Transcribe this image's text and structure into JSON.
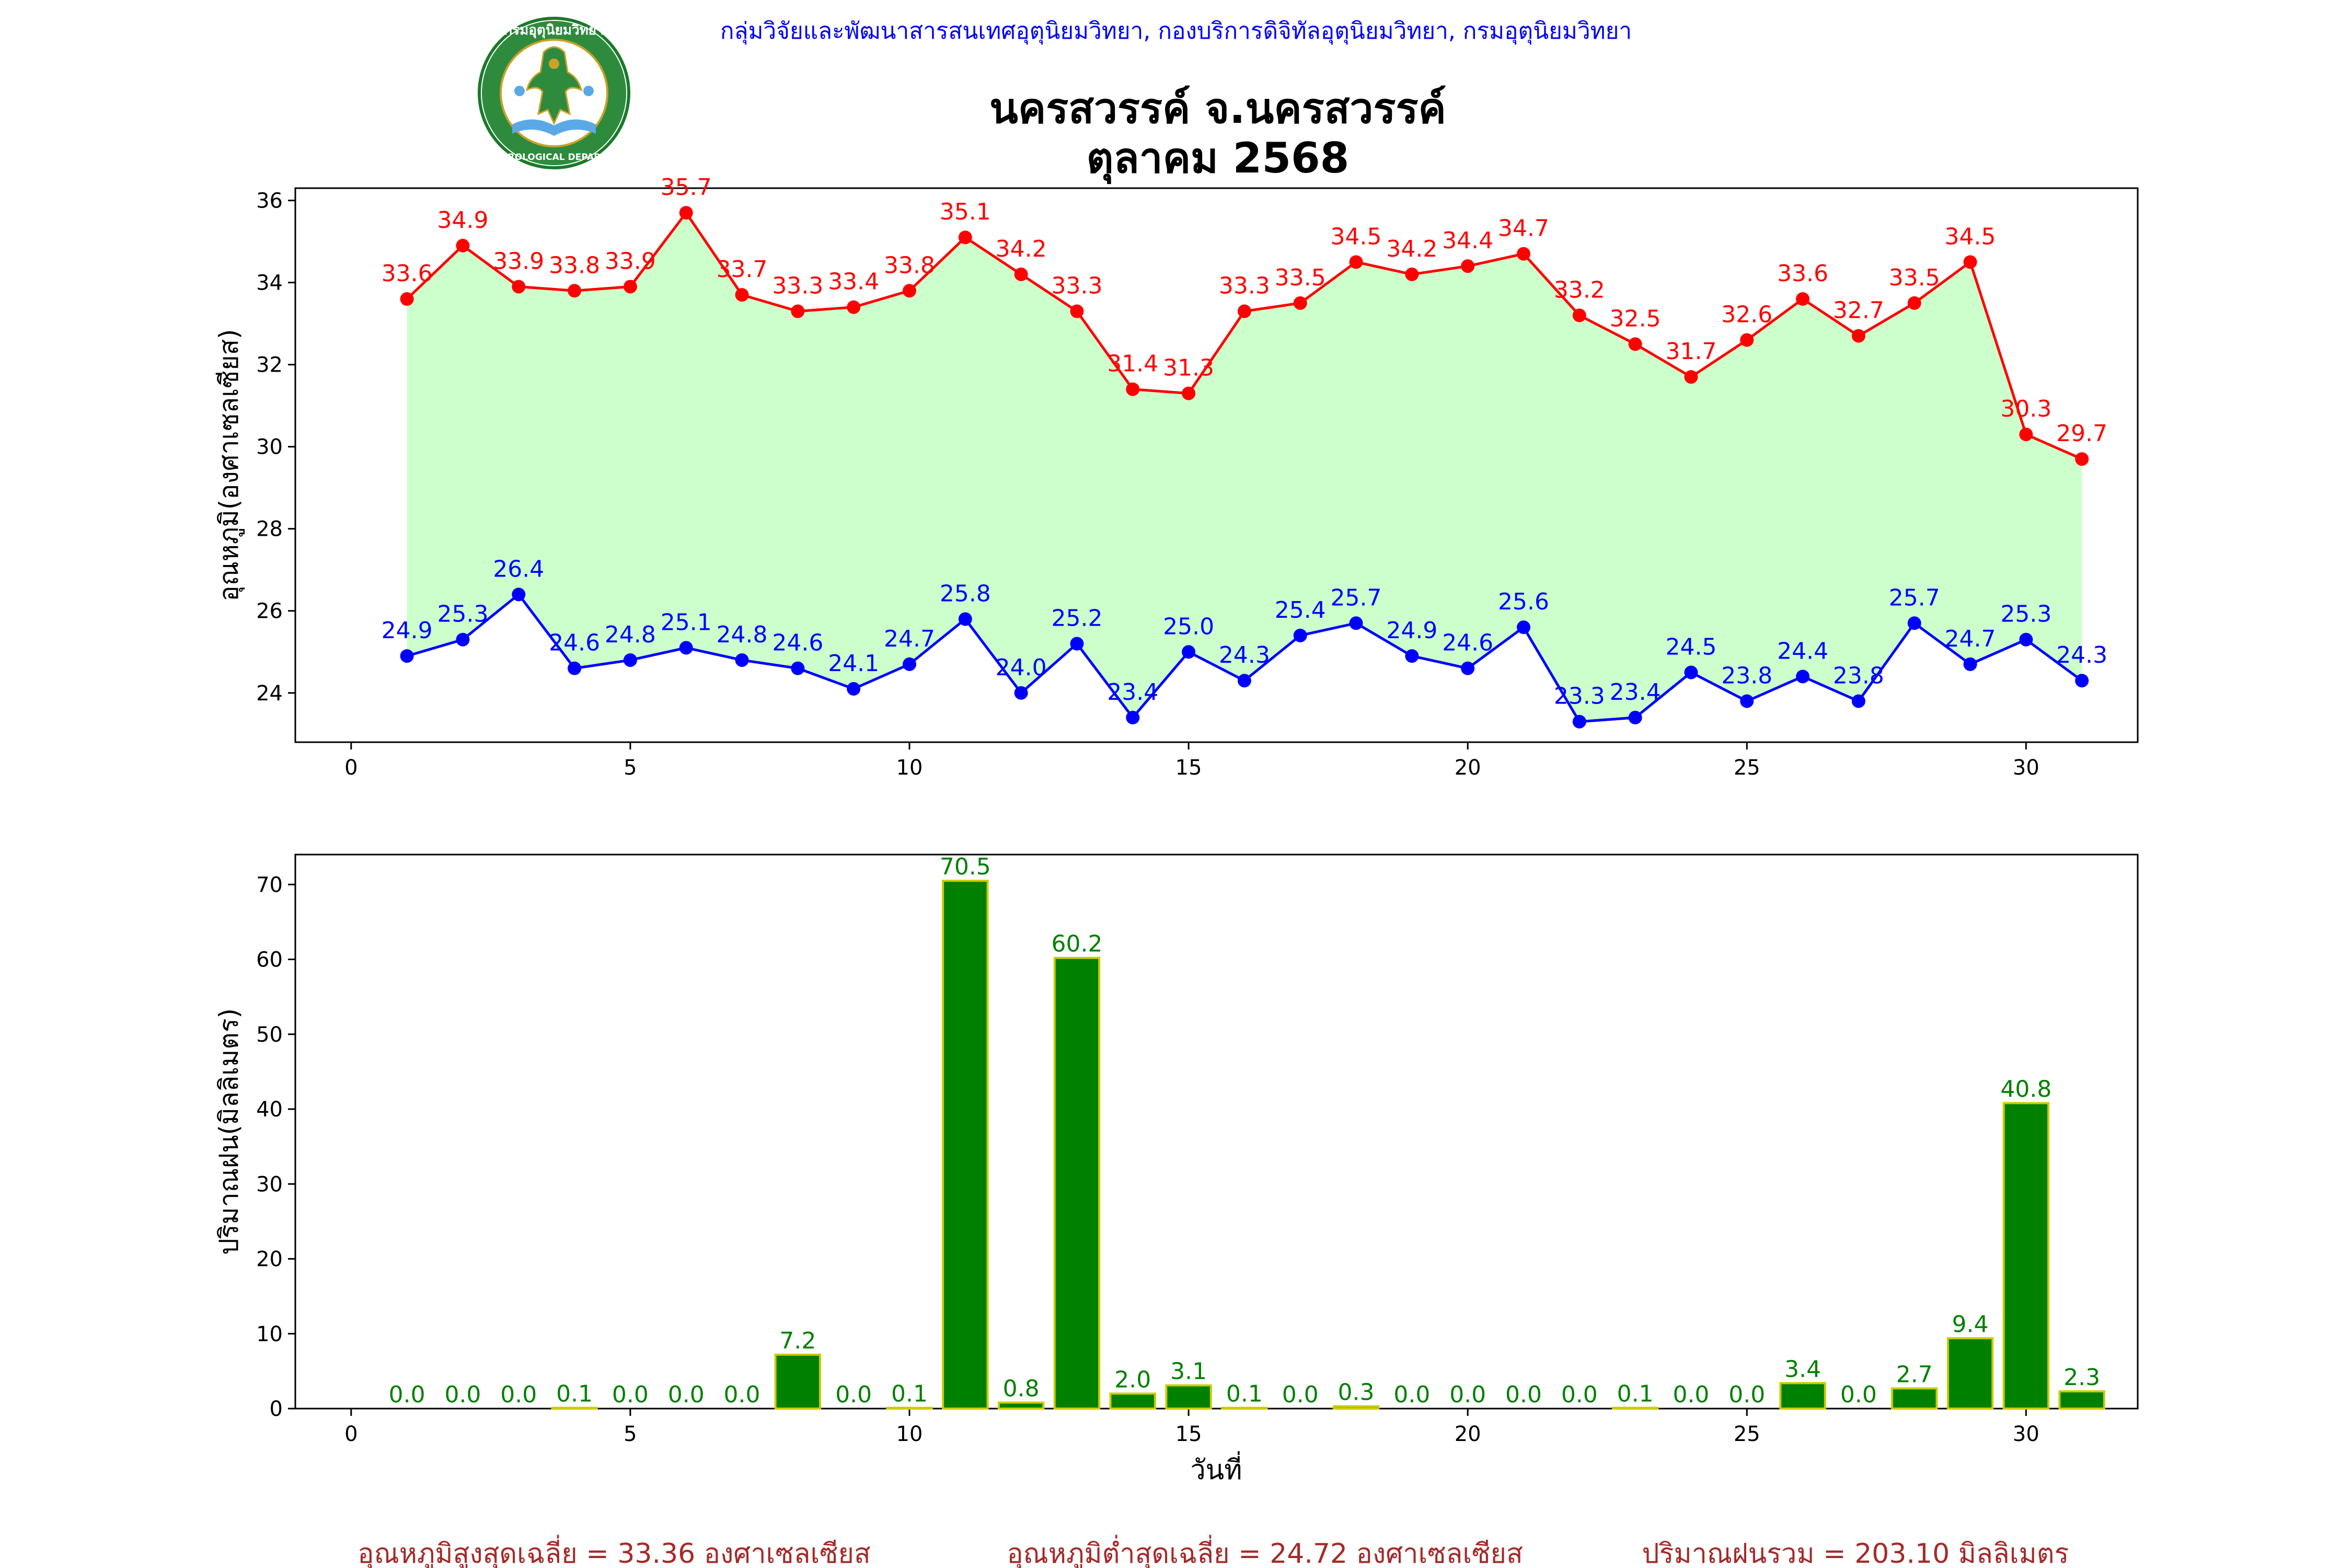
{
  "header": {
    "department_line": "กลุ่มวิจัยและพัฒนาสารสนเทศอุตุนิยมวิทยา, กองบริการดิจิทัลอุตุนิยมวิทยา, กรมอุตุนิยมวิทยา",
    "title_line1": "นครสวรรค์  จ.นครสวรรค์",
    "title_line2": "ตุลาคม 2568",
    "logo": {
      "icon": "meteorological-department-seal",
      "text_top": "กรมอุตุนิยมวิทยา",
      "text_bottom": "METEOROLOGICAL DEPARTMENT"
    },
    "title_color": "#000000",
    "department_color": "#0000ff"
  },
  "colors": {
    "max_line": "#ff0000",
    "min_line": "#0000ff",
    "fill": "#ccffcc",
    "bar_fill": "#008000",
    "bar_edge": "#cccc00",
    "bar_label": "#008000",
    "footer": "#a52a2a"
  },
  "chart_data": [
    {
      "type": "line",
      "ylabel": "อุณหภูมิ(องศาเซลเซียส)",
      "xlabel": "",
      "xlim": [
        -1,
        32
      ],
      "ylim": [
        22.8,
        36.3
      ],
      "xticks": [
        0,
        5,
        10,
        15,
        20,
        25,
        30
      ],
      "yticks": [
        24,
        26,
        28,
        30,
        32,
        34,
        36
      ],
      "x": [
        1,
        2,
        3,
        4,
        5,
        6,
        7,
        8,
        9,
        10,
        11,
        12,
        13,
        14,
        15,
        16,
        17,
        18,
        19,
        20,
        21,
        22,
        23,
        24,
        25,
        26,
        27,
        28,
        29,
        30,
        31
      ],
      "series": [
        {
          "values": [
            33.6,
            34.9,
            33.9,
            33.8,
            33.9,
            35.7,
            33.7,
            33.3,
            33.4,
            33.8,
            35.1,
            34.2,
            33.3,
            31.4,
            31.3,
            33.3,
            33.5,
            34.5,
            34.2,
            34.4,
            34.7,
            33.2,
            32.5,
            31.7,
            32.6,
            33.6,
            32.7,
            33.5,
            34.5,
            30.3,
            29.7
          ],
          "labels": [
            "33.6",
            "34.9",
            "33.9",
            "33.8",
            "33.9",
            "35.7",
            "33.7",
            "33.3",
            "33.4",
            "33.8",
            "35.1",
            "34.2",
            "33.3",
            "31.4",
            "31.3",
            "33.3",
            "33.5",
            "34.5",
            "34.2",
            "34.4",
            "34.7",
            "33.2",
            "32.5",
            "31.7",
            "32.6",
            "33.6",
            "32.7",
            "33.5",
            "34.5",
            "30.3",
            "29.7"
          ],
          "color": "#ff0000"
        },
        {
          "values": [
            24.9,
            25.3,
            26.4,
            24.6,
            24.8,
            25.1,
            24.8,
            24.6,
            24.1,
            24.7,
            25.8,
            24.0,
            25.2,
            23.4,
            25.0,
            24.3,
            25.4,
            25.7,
            24.9,
            24.6,
            25.6,
            23.3,
            23.4,
            24.5,
            23.8,
            24.4,
            23.8,
            25.7,
            24.7,
            25.3,
            24.3
          ],
          "labels": [
            "24.9",
            "25.3",
            "26.4",
            "24.6",
            "24.8",
            "25.1",
            "24.8",
            "24.6",
            "24.1",
            "24.7",
            "25.8",
            "24.0",
            "25.2",
            "23.4",
            "25.0",
            "24.3",
            "25.4",
            "25.7",
            "24.9",
            "24.6",
            "25.6",
            "23.3",
            "23.4",
            "24.5",
            "23.8",
            "24.4",
            "23.8",
            "25.7",
            "24.7",
            "25.3",
            "24.3"
          ],
          "color": "#0000ff"
        }
      ],
      "fill_between": true,
      "grid": false
    },
    {
      "type": "bar",
      "ylabel": "ปริมาณฝน(มิลลิเมตร)",
      "xlabel": "วันที่",
      "xlim": [
        -1,
        32
      ],
      "ylim": [
        0,
        74
      ],
      "xticks": [
        0,
        5,
        10,
        15,
        20,
        25,
        30
      ],
      "yticks": [
        0,
        10,
        20,
        30,
        40,
        50,
        60,
        70
      ],
      "x": [
        1,
        2,
        3,
        4,
        5,
        6,
        7,
        8,
        9,
        10,
        11,
        12,
        13,
        14,
        15,
        16,
        17,
        18,
        19,
        20,
        21,
        22,
        23,
        24,
        25,
        26,
        27,
        28,
        29,
        30,
        31
      ],
      "values": [
        0.0,
        0.0,
        0.0,
        0.1,
        0.0,
        0.0,
        0.0,
        7.2,
        0.0,
        0.1,
        70.5,
        0.8,
        60.2,
        2.0,
        3.1,
        0.1,
        0.0,
        0.3,
        0.0,
        0.0,
        0.0,
        0.0,
        0.1,
        0.0,
        0.0,
        3.4,
        0.0,
        2.7,
        9.4,
        40.8,
        2.3
      ],
      "labels": [
        "0.0",
        "0.0",
        "0.0",
        "0.1",
        "0.0",
        "0.0",
        "0.0",
        "7.2",
        "0.0",
        "0.1",
        "70.5",
        "0.8",
        "60.2",
        "2.0",
        "3.1",
        "0.1",
        "0.0",
        "0.3",
        "0.0",
        "0.0",
        "0.0",
        "0.0",
        "0.1",
        "0.0",
        "0.0",
        "3.4",
        "0.0",
        "2.7",
        "9.4",
        "40.8",
        "2.3"
      ],
      "grid": false
    }
  ],
  "footer": {
    "avg_max": "อุณหภูมิสูงสุดเฉลี่ย = 33.36 องศาเซลเซียส",
    "avg_min": "อุณหภูมิต่ำสุดเฉลี่ย = 24.72 องศาเซลเซียส",
    "rain_total": "ปริมาณฝนรวม = 203.10 มิลลิเมตร"
  }
}
